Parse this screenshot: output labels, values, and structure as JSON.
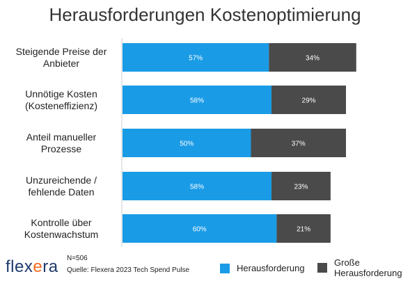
{
  "title": "Herausforderungen Kostenoptimierung",
  "chart_data": {
    "type": "bar",
    "orientation": "horizontal",
    "stacked": true,
    "categories": [
      [
        "Steigende Preise der",
        "Anbieter"
      ],
      [
        "Unnötige Kosten",
        "(Kosteneffizienz)"
      ],
      [
        "Anteil manueller",
        "Prozesse"
      ],
      [
        "Unzureichende /",
        "fehlende Daten"
      ],
      [
        "Kontrolle über",
        "Kostenwachstum"
      ]
    ],
    "series": [
      {
        "name": "Herausforderung",
        "values": [
          57,
          58,
          50,
          58,
          60
        ],
        "labels": [
          "57%",
          "58%",
          "50%",
          "58%",
          "60%"
        ],
        "color": "#1a9be6"
      },
      {
        "name": "Große Herausforderung",
        "values": [
          34,
          29,
          37,
          23,
          21
        ],
        "labels": [
          "34%",
          "29%",
          "37%",
          "23%",
          "21%"
        ],
        "color": "#4a4a4a"
      }
    ],
    "xlim": [
      0,
      100
    ],
    "grid": false,
    "legend": "bottom-right"
  },
  "footer": {
    "logo_main": "flex",
    "logo_x": "e",
    "logo_end": "ra",
    "n": "N=506",
    "source": "Quelle: Flexera 2023 Tech Spend Pulse"
  },
  "legend": [
    {
      "lines": [
        "Herausforderung"
      ],
      "color": "#1a9be6"
    },
    {
      "lines": [
        "Große",
        "Herausforderung"
      ],
      "color": "#4a4a4a"
    }
  ]
}
